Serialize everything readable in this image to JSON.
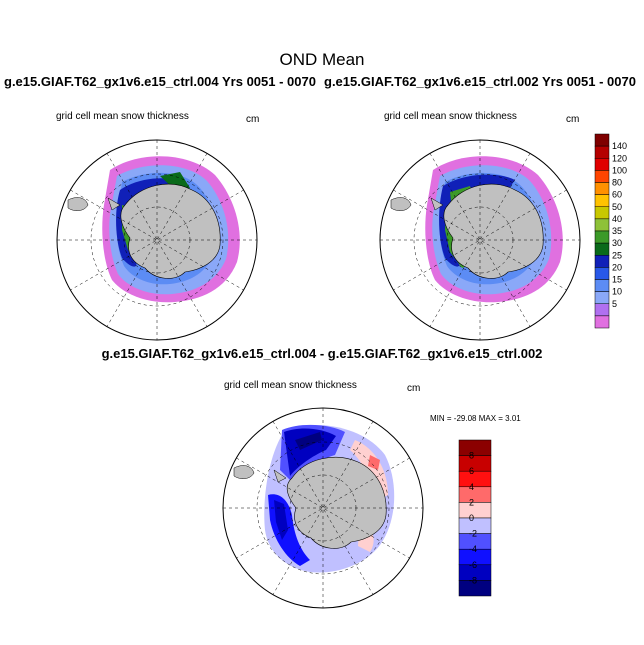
{
  "main_title": "OND Mean",
  "panels": [
    {
      "case": "g.e15.GIAF.T62_gx1v6.e15_ctrl.004  Yrs 0051 - 0070",
      "field": "grid cell mean snow thickness",
      "units": "cm"
    },
    {
      "case": "g.e15.GIAF.T62_gx1v6.e15_ctrl.002  Yrs 0051 - 0070",
      "field": "grid cell mean snow thickness",
      "units": "cm"
    }
  ],
  "difference": {
    "title": "g.e15.GIAF.T62_gx1v6.e15_ctrl.004 - g.e15.GIAF.T62_gx1v6.e15_ctrl.002",
    "field": "grid cell mean snow thickness",
    "units": "cm",
    "min_max": "MIN = -29.08 MAX =   3.01"
  },
  "colorbar_top": {
    "labels": [
      "140",
      "120",
      "100",
      "80",
      "60",
      "50",
      "40",
      "35",
      "30",
      "25",
      "20",
      "15",
      "10",
      "5"
    ],
    "colors": [
      "#7f0000",
      "#b50000",
      "#e00000",
      "#ff4500",
      "#ff9000",
      "#ffc200",
      "#c8c800",
      "#8ec238",
      "#3c9a28",
      "#0a6a1a",
      "#1020b8",
      "#2858e8",
      "#5c8cf4",
      "#8aa8f8",
      "#b070f0",
      "#e070e0"
    ]
  },
  "colorbar_diff": {
    "labels": [
      "8",
      "6",
      "4",
      "2",
      "0",
      "-2",
      "-4",
      "-6",
      "-8"
    ],
    "colors": [
      "#8b0000",
      "#c80000",
      "#ff1010",
      "#ff6a6a",
      "#ffd0d0",
      "#c0c0ff",
      "#5050ff",
      "#1010ff",
      "#0000c0",
      "#000080"
    ]
  }
}
